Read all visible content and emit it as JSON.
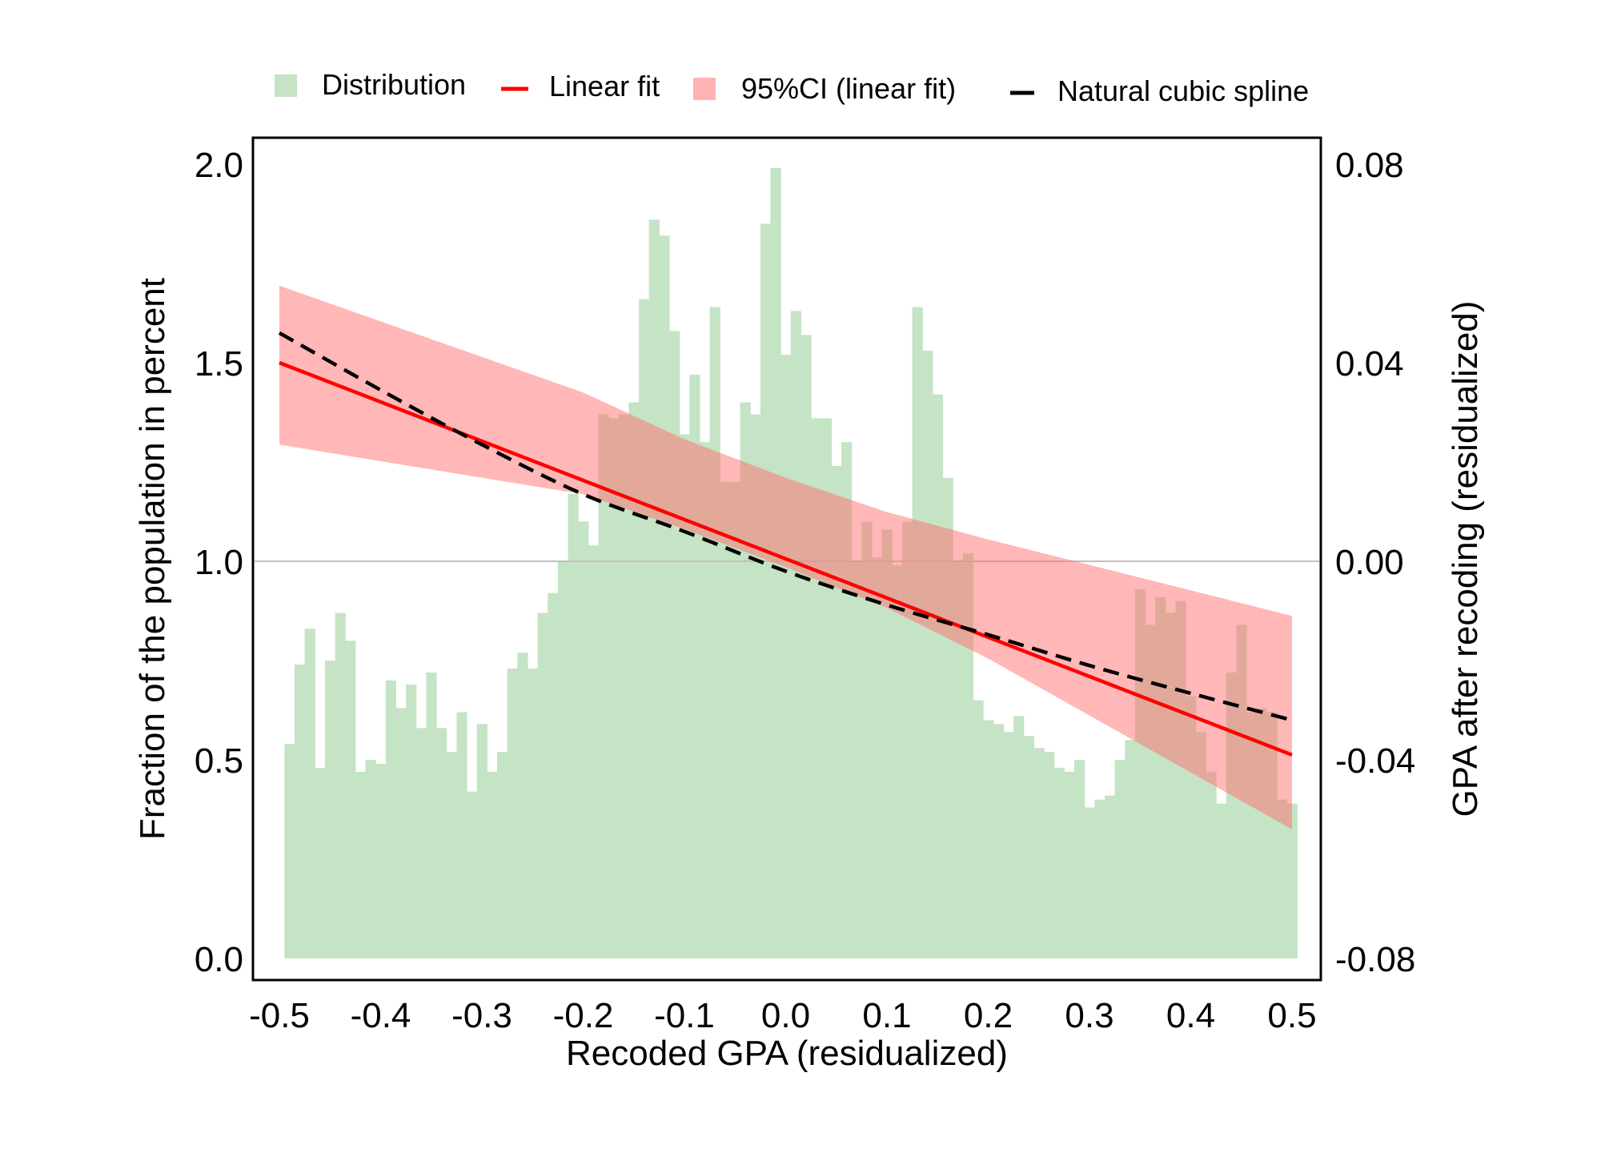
{
  "chart_data": {
    "type": "bar",
    "xlabel": "Recoded GPA (residualized)",
    "ylabel_left": "Fraction of the population in percent",
    "ylabel_right": "GPA after recoding (residualized)",
    "xlim": [
      -0.5,
      0.5
    ],
    "ylim_left": [
      0.0,
      2.0
    ],
    "ylim_right": [
      -0.08,
      0.08
    ],
    "x_ticks": [
      "-0.5",
      "-0.4",
      "-0.3",
      "-0.2",
      "-0.1",
      "0.0",
      "0.1",
      "0.2",
      "0.3",
      "0.4",
      "0.5"
    ],
    "y_ticks_left": [
      "0.0",
      "0.5",
      "1.0",
      "1.5",
      "2.0"
    ],
    "y_ticks_right": [
      "-0.08",
      "-0.04",
      "0.00",
      "0.04",
      "0.08"
    ],
    "grid": false,
    "reference_line": {
      "axis": "left",
      "y": 1.0,
      "color": "#c0c0c0"
    },
    "legend": {
      "position": "top",
      "entries": [
        {
          "label": "Distribution",
          "symbol": "square",
          "color": "#c5e3c5"
        },
        {
          "label": "Linear fit",
          "symbol": "line",
          "color": "#ff0000"
        },
        {
          "label": "95%CI (linear fit)",
          "symbol": "square",
          "color": "#ffb3b3"
        },
        {
          "label": "Natural cubic spline",
          "symbol": "dashed-line",
          "color": "#000000"
        }
      ]
    },
    "distribution": {
      "name": "Distribution",
      "axis": "left",
      "bin_width": 0.01,
      "color": "#c5e3c5",
      "x": [
        -0.49,
        -0.48,
        -0.47,
        -0.46,
        -0.45,
        -0.44,
        -0.43,
        -0.42,
        -0.41,
        -0.4,
        -0.39,
        -0.38,
        -0.37,
        -0.36,
        -0.35,
        -0.34,
        -0.33,
        -0.32,
        -0.31,
        -0.3,
        -0.29,
        -0.28,
        -0.27,
        -0.26,
        -0.25,
        -0.24,
        -0.23,
        -0.22,
        -0.21,
        -0.2,
        -0.19,
        -0.18,
        -0.17,
        -0.16,
        -0.15,
        -0.14,
        -0.13,
        -0.12,
        -0.11,
        -0.1,
        -0.09,
        -0.08,
        -0.07,
        -0.06,
        -0.05,
        -0.04,
        -0.03,
        -0.02,
        -0.01,
        0.0,
        0.01,
        0.02,
        0.03,
        0.04,
        0.05,
        0.06,
        0.07,
        0.08,
        0.09,
        0.1,
        0.11,
        0.12,
        0.13,
        0.14,
        0.15,
        0.16,
        0.17,
        0.18,
        0.19,
        0.2,
        0.21,
        0.22,
        0.23,
        0.24,
        0.25,
        0.26,
        0.27,
        0.28,
        0.29,
        0.3,
        0.31,
        0.32,
        0.33,
        0.34,
        0.35,
        0.36,
        0.37,
        0.38,
        0.39,
        0.4,
        0.41,
        0.42,
        0.43,
        0.44,
        0.45,
        0.46,
        0.47,
        0.48,
        0.49,
        0.5
      ],
      "values": [
        0.54,
        0.74,
        0.83,
        0.48,
        0.75,
        0.87,
        0.8,
        0.47,
        0.5,
        0.49,
        0.7,
        0.63,
        0.69,
        0.58,
        0.72,
        0.58,
        0.52,
        0.62,
        0.42,
        0.59,
        0.47,
        0.52,
        0.73,
        0.77,
        0.73,
        0.87,
        0.92,
        1.0,
        1.17,
        1.1,
        1.04,
        1.37,
        1.36,
        1.37,
        1.4,
        1.66,
        1.86,
        1.82,
        1.58,
        1.32,
        1.47,
        1.3,
        1.64,
        1.2,
        1.2,
        1.4,
        1.37,
        1.85,
        1.99,
        1.52,
        1.63,
        1.57,
        1.36,
        1.36,
        1.24,
        1.3,
        1.0,
        1.1,
        1.01,
        1.08,
        0.99,
        1.1,
        1.64,
        1.53,
        1.42,
        1.21,
        1.0,
        1.02,
        0.65,
        0.6,
        0.59,
        0.57,
        0.61,
        0.56,
        0.53,
        0.52,
        0.48,
        0.47,
        0.5,
        0.38,
        0.4,
        0.41,
        0.5,
        0.55,
        0.93,
        0.84,
        0.91,
        0.87,
        0.9,
        0.66,
        0.57,
        0.47,
        0.39,
        0.72,
        0.84,
        0.62,
        0.63,
        0.62,
        0.4,
        0.39
      ]
    },
    "linear_fit": {
      "name": "Linear fit",
      "axis": "right",
      "color": "#ff0000",
      "x": [
        -0.5,
        0.5
      ],
      "y": [
        0.04,
        -0.039
      ]
    },
    "ci_linear_fit": {
      "name": "95%CI (linear fit)",
      "axis": "right",
      "color": "#ffb3b3",
      "x": [
        -0.5,
        -0.2,
        -0.1,
        0.0,
        0.1,
        0.2,
        0.5
      ],
      "upper": [
        0.0555,
        0.034,
        0.0246,
        0.0168,
        0.0099,
        0.0044,
        -0.011
      ],
      "lower": [
        0.0235,
        0.0135,
        0.0065,
        -0.0012,
        -0.0094,
        -0.0196,
        -0.054
      ]
    },
    "natural_cubic_spline": {
      "name": "Natural cubic spline",
      "axis": "right",
      "color": "#000000",
      "x": [
        -0.5,
        -0.4,
        -0.3,
        -0.2,
        -0.1,
        0.0,
        0.1,
        0.2,
        0.3,
        0.4,
        0.5
      ],
      "y": [
        0.046,
        0.0345,
        0.0235,
        0.0135,
        0.006,
        -0.002,
        -0.0088,
        -0.0148,
        -0.021,
        -0.0266,
        -0.032
      ]
    }
  }
}
